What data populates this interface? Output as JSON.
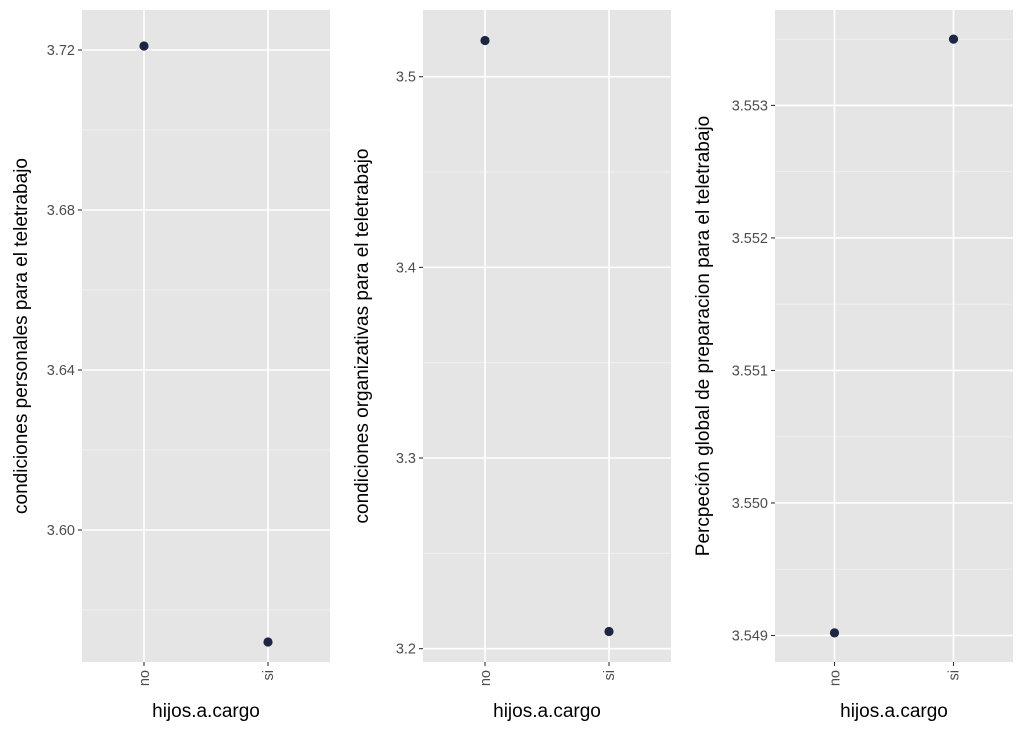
{
  "chart_data": [
    {
      "type": "scatter",
      "xlabel": "hijos.a.cargo",
      "ylabel": "condiciones personales para el teletrabajo",
      "categories": [
        "no",
        "si"
      ],
      "values": [
        3.721,
        3.572
      ],
      "ylim": [
        3.567,
        3.73
      ],
      "yticks": [
        "3.60",
        "3.64",
        "3.68",
        "3.72"
      ],
      "point_color": "#1c2541",
      "grid": true
    },
    {
      "type": "scatter",
      "xlabel": "hijos.a.cargo",
      "ylabel": "condiciones organizativas para el teletrabajo",
      "categories": [
        "no",
        "si"
      ],
      "values": [
        3.519,
        3.209
      ],
      "ylim": [
        3.193,
        3.535
      ],
      "yticks": [
        "3.2",
        "3.3",
        "3.4",
        "3.5"
      ],
      "point_color": "#1c2541",
      "grid": true
    },
    {
      "type": "scatter",
      "xlabel": "hijos.a.cargo",
      "ylabel": "Percpeción global de preparacion para el teletrabajo",
      "categories": [
        "no",
        "si"
      ],
      "values": [
        3.54902,
        3.5535
      ],
      "ylim": [
        3.5488,
        3.55372
      ],
      "yticks": [
        "3.549",
        "3.550",
        "3.551",
        "3.552",
        "3.553"
      ],
      "point_color": "#1c2541",
      "grid": true
    }
  ]
}
